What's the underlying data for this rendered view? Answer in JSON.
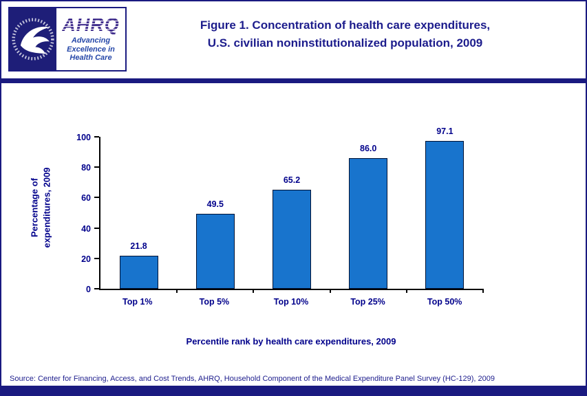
{
  "header": {
    "title_line1": "Figure 1. Concentration of health care expenditures,",
    "title_line2": "U.S. civilian noninstitutionalized population, 2009",
    "logos": {
      "ahrq_acronym": "AHRQ",
      "tagline_lines": [
        "Advancing",
        "Excellence in",
        "Health Care"
      ]
    }
  },
  "chart_data": {
    "type": "bar",
    "categories": [
      "Top 1%",
      "Top 5%",
      "Top 10%",
      "Top 25%",
      "Top 50%"
    ],
    "values": [
      21.8,
      49.5,
      65.2,
      86.0,
      97.1
    ],
    "value_labels": [
      "21.8",
      "49.5",
      "65.2",
      "86.0",
      "97.1"
    ],
    "title": "Figure 1. Concentration of health care expenditures, U.S. civilian noninstitutionalized population, 2009",
    "xlabel": "Percentile rank by health care expenditures, 2009",
    "ylabel_lines": [
      "Percentage of",
      "expenditures, 2009"
    ],
    "ylim": [
      0,
      100
    ],
    "yticks": [
      0,
      20,
      40,
      60,
      80,
      100
    ],
    "grid": false,
    "legend": false,
    "bar_color": "#1874CD",
    "bar_border_color": "#001133",
    "label_color": "#00008B"
  },
  "footer": {
    "source": "Source: Center for Financing, Access, and Cost Trends, AHRQ, Household Component of the Medical Expenditure Panel Survey (HC-129), 2009"
  },
  "colors": {
    "navy_band": "#1a1a80",
    "title_navy": "#1c1c8c",
    "ahrq_purple": "#43318e",
    "tagline_blue": "#2547a8"
  }
}
